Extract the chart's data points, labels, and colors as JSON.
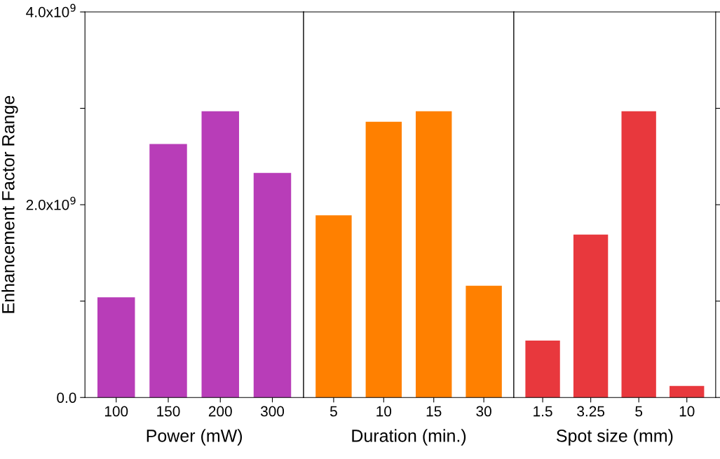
{
  "chart_data": [
    {
      "type": "bar",
      "ylabel": "Enhancement Factor Range",
      "xlabel": "Power (mW)",
      "categories": [
        "100",
        "150",
        "200",
        "300"
      ],
      "values": [
        1040000000.0,
        2630000000.0,
        2970000000.0,
        2330000000.0
      ],
      "color": "#b83db8",
      "ylim": [
        0,
        4000000000.0
      ],
      "yticks": [
        {
          "value": 0,
          "label": "0.0"
        },
        {
          "value": 1000000000.0,
          "label": null
        },
        {
          "value": 2000000000.0,
          "label": "2.0x10$^{9}$"
        },
        {
          "value": 3000000000.0,
          "label": null
        },
        {
          "value": 4000000000.0,
          "label": "4.0x10$^{9}$"
        }
      ]
    },
    {
      "type": "bar",
      "xlabel": "Duration (min.)",
      "categories": [
        "5",
        "10",
        "15",
        "30"
      ],
      "values": [
        1890000000.0,
        2860000000.0,
        2970000000.0,
        1160000000.0
      ],
      "color": "#ff8000",
      "ylim": [
        0,
        4000000000.0
      ],
      "tick_labels": "x"
    },
    {
      "type": "bar",
      "xlabel": "Spot size (mm)",
      "categories": [
        "1.5",
        "3.25",
        "5",
        "10"
      ],
      "values": [
        590000000.0,
        1690000000.0,
        2970000000.0,
        120000000.0
      ],
      "color": "#e8383d",
      "ylim": [
        0,
        4000000000.0
      ],
      "tick_labels": "x"
    }
  ]
}
